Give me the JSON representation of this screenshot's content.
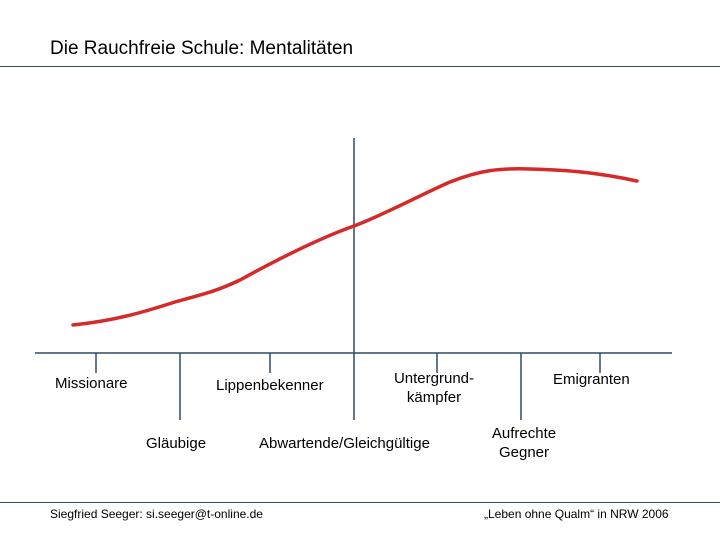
{
  "title": "Die Rauchfreie Schule: Mentalitäten",
  "colors": {
    "curve": "#d42a2a",
    "axis": "#2f4a66",
    "rule": "#2f4a66"
  },
  "labels": {
    "missionare": "Missionare",
    "glaeubige": "Gläubige",
    "lippenbekenner": "Lippenbekenner",
    "abwartende": "Abwartende/Gleichgültige",
    "untergrund_1": "Untergrund-",
    "untergrund_2": "kämpfer",
    "aufrechte_1": "Aufrechte",
    "aufrechte_2": "Gegner",
    "emigranten": "Emigranten"
  },
  "footer": {
    "left": "Siegfried Seeger: si.seeger@t-online.de",
    "right": "„Leben ohne Qualm“ in NRW 2006"
  }
}
